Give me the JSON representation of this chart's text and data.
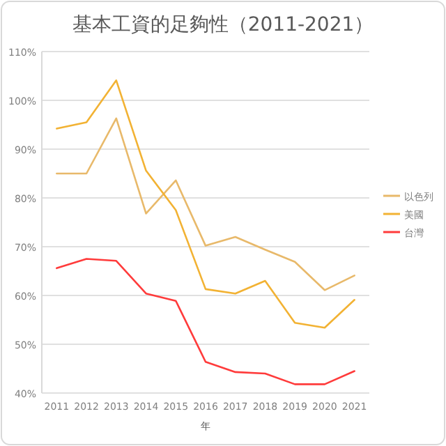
{
  "chart_data": {
    "type": "line",
    "title": "基本工資的足夠性（2011-2021）",
    "xlabel": "年",
    "categories": [
      "2011",
      "2012",
      "2013",
      "2014",
      "2015",
      "2016",
      "2017",
      "2018",
      "2019",
      "2020",
      "2021"
    ],
    "series": [
      {
        "name": "以色列",
        "color": "#e8b96a",
        "values": [
          85.0,
          85.0,
          96.3,
          76.8,
          83.6,
          70.2,
          72.0,
          69.4,
          66.9,
          61.1,
          64.1
        ]
      },
      {
        "name": "美國",
        "color": "#f2b233",
        "values": [
          94.2,
          95.5,
          104.1,
          85.6,
          77.5,
          61.3,
          60.4,
          63.0,
          54.4,
          53.4,
          59.1
        ]
      },
      {
        "name": "台灣",
        "color": "#ff3b3b",
        "values": [
          65.6,
          67.5,
          67.1,
          60.4,
          58.9,
          46.4,
          44.3,
          44.0,
          41.8,
          41.8,
          44.5
        ]
      }
    ],
    "ylim": [
      40,
      110
    ],
    "yticks": [
      {
        "value": 40,
        "label": "40%"
      },
      {
        "value": 50,
        "label": "50%"
      },
      {
        "value": 60,
        "label": "60%"
      },
      {
        "value": 70,
        "label": "70%"
      },
      {
        "value": 80,
        "label": "80%"
      },
      {
        "value": 90,
        "label": "90%"
      },
      {
        "value": 100,
        "label": "100%"
      },
      {
        "value": 110,
        "label": "110%"
      }
    ],
    "grid": "y",
    "legend": "right",
    "marker": "none",
    "line_style": "solid"
  }
}
